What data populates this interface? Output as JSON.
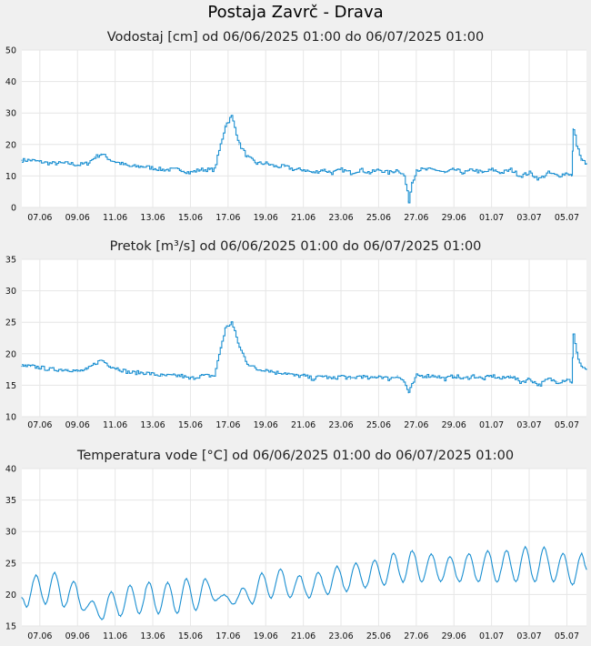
{
  "page": {
    "title": "Postaja Zavrč - Drava"
  },
  "colors": {
    "background": "#f0f0f0",
    "plot_background": "#ffffff",
    "grid": "#e6e6e6",
    "series": "#1a8fd1"
  },
  "chart_data": [
    {
      "type": "line",
      "title": "Vodostaj [cm] od 06/06/2025 01:00 do 06/07/2025 01:00",
      "xlabel": "",
      "ylabel": "",
      "ylim": [
        0,
        50
      ],
      "yticks": [
        0,
        10,
        20,
        30,
        40,
        50
      ],
      "xlim": [
        "06/06/2025 01:00",
        "06/07/2025 01:00"
      ],
      "xticks": [
        "07.06",
        "09.06",
        "11.06",
        "13.06",
        "15.06",
        "17.06",
        "19.06",
        "21.06",
        "23.06",
        "25.06",
        "27.06",
        "29.06",
        "01.07",
        "03.07",
        "05.07"
      ],
      "grid": true,
      "series": [
        {
          "x": [
            "06/06 01:00",
            "06/06 12:00",
            "07/06 00:00",
            "07/06 12:00",
            "08/06 00:00",
            "08/06 12:00",
            "09/06 00:00",
            "09/06 12:00",
            "09/06 22:00",
            "10/06 06:00",
            "10/06 18:00",
            "11/06 06:00",
            "11/06 18:00",
            "12/06 12:00",
            "13/06 12:00",
            "14/06 12:00",
            "14/06 22:00",
            "15/06 12:00",
            "16/06 00:00",
            "16/06 06:00",
            "16/06 14:00",
            "16/06 20:00",
            "17/06 04:00",
            "17/06 14:00",
            "18/06 00:00",
            "18/06 12:00",
            "19/06 00:00",
            "19/06 12:00",
            "20/06 00:00",
            "20/06 12:00",
            "21/06 00:00",
            "21/06 12:00",
            "22/06 00:00",
            "22/06 12:00",
            "23/06 00:00",
            "23/06 12:00",
            "24/06 00:00",
            "24/06 12:00",
            "25/06 00:00",
            "25/06 12:00",
            "26/06 00:00",
            "26/06 08:00",
            "26/06 14:00",
            "26/06 18:00",
            "27/06 00:00",
            "27/06 12:00",
            "28/06 00:00",
            "28/06 12:00",
            "29/06 00:00",
            "29/06 12:00",
            "30/06 00:00",
            "30/06 12:00",
            "01/07 00:00",
            "01/07 12:00",
            "02/07 00:00",
            "02/07 12:00",
            "03/07 00:00",
            "03/07 12:00",
            "04/07 00:00",
            "04/07 12:00",
            "05/07 00:00",
            "05/07 06:00",
            "05/07 08:00",
            "05/07 12:00",
            "05/07 18:00",
            "06/07 01:00"
          ],
          "values": [
            15,
            15,
            14.5,
            14,
            14,
            14,
            13.5,
            14,
            16,
            17,
            15,
            14,
            13,
            13,
            12,
            12,
            11,
            12,
            12,
            12,
            20,
            26,
            29,
            20,
            16,
            14,
            14,
            13,
            13,
            12,
            12,
            11,
            12,
            11,
            12,
            11,
            12,
            11,
            12,
            11,
            12,
            10,
            2,
            8,
            12,
            12,
            12,
            11,
            12,
            11,
            12,
            11,
            12,
            11,
            12,
            10,
            11,
            9,
            11,
            10,
            11,
            10,
            25,
            20,
            15,
            14
          ]
        }
      ]
    },
    {
      "type": "line",
      "title": "Pretok [m³/s] od 06/06/2025 01:00 do 06/07/2025 01:00",
      "xlabel": "",
      "ylabel": "",
      "ylim": [
        10,
        35
      ],
      "yticks": [
        10,
        15,
        20,
        25,
        30,
        35
      ],
      "xlim": [
        "06/06/2025 01:00",
        "06/07/2025 01:00"
      ],
      "xticks": [
        "07.06",
        "09.06",
        "11.06",
        "13.06",
        "15.06",
        "17.06",
        "19.06",
        "21.06",
        "23.06",
        "25.06",
        "27.06",
        "29.06",
        "01.07",
        "03.07",
        "05.07"
      ],
      "grid": true,
      "series": [
        {
          "x": [
            "06/06 01:00",
            "06/06 12:00",
            "07/06 00:00",
            "07/06 12:00",
            "08/06 00:00",
            "08/06 12:00",
            "09/06 00:00",
            "09/06 12:00",
            "09/06 22:00",
            "10/06 06:00",
            "10/06 18:00",
            "11/06 06:00",
            "11/06 18:00",
            "12/06 12:00",
            "13/06 12:00",
            "14/06 12:00",
            "14/06 22:00",
            "15/06 12:00",
            "16/06 00:00",
            "16/06 06:00",
            "16/06 14:00",
            "16/06 20:00",
            "17/06 04:00",
            "17/06 14:00",
            "18/06 00:00",
            "18/06 12:00",
            "19/06 00:00",
            "19/06 12:00",
            "20/06 00:00",
            "20/06 12:00",
            "21/06 00:00",
            "21/06 12:00",
            "22/06 00:00",
            "22/06 12:00",
            "23/06 00:00",
            "23/06 12:00",
            "24/06 00:00",
            "24/06 12:00",
            "25/06 00:00",
            "25/06 12:00",
            "26/06 00:00",
            "26/06 08:00",
            "26/06 14:00",
            "26/06 18:00",
            "27/06 00:00",
            "27/06 12:00",
            "28/06 00:00",
            "28/06 12:00",
            "29/06 00:00",
            "29/06 12:00",
            "30/06 00:00",
            "30/06 12:00",
            "01/07 00:00",
            "01/07 12:00",
            "02/07 00:00",
            "02/07 12:00",
            "03/07 00:00",
            "03/07 12:00",
            "04/07 00:00",
            "04/07 12:00",
            "05/07 00:00",
            "05/07 06:00",
            "05/07 08:00",
            "05/07 12:00",
            "05/07 18:00",
            "06/07 01:00"
          ],
          "values": [
            18,
            18,
            17.8,
            17.5,
            17.5,
            17.5,
            17.2,
            17.5,
            18.5,
            19,
            18,
            17.5,
            17,
            17,
            16.5,
            16.5,
            16,
            16.5,
            16.5,
            16.5,
            21,
            24,
            25,
            21,
            18.5,
            17.5,
            17.5,
            17,
            17,
            16.5,
            16.5,
            16,
            16.5,
            16,
            16.5,
            16,
            16.5,
            16,
            16.5,
            16,
            16.5,
            15.5,
            13.8,
            15,
            16.5,
            16.5,
            16.5,
            16,
            16.5,
            16,
            16.5,
            16,
            16.5,
            16,
            16.5,
            15.5,
            16,
            15,
            16,
            15.5,
            16,
            15.5,
            23,
            20,
            18,
            17.5
          ]
        }
      ]
    },
    {
      "type": "line",
      "title": "Temperatura vode [°C] od 06/06/2025 01:00 do 06/07/2025 01:00",
      "xlabel": "",
      "ylabel": "",
      "ylim": [
        15,
        40
      ],
      "yticks": [
        15,
        20,
        25,
        30,
        35,
        40
      ],
      "xlim": [
        "06/06/2025 01:00",
        "06/07/2025 01:00"
      ],
      "xticks": [
        "07.06",
        "09.06",
        "11.06",
        "13.06",
        "15.06",
        "17.06",
        "19.06",
        "21.06",
        "23.06",
        "25.06",
        "27.06",
        "29.06",
        "01.07",
        "03.07",
        "05.07"
      ],
      "grid": true,
      "series": [
        {
          "x": [
            "06/06 01:00",
            "06/06 07:00",
            "06/06 19:00",
            "07/06 07:00",
            "07/06 19:00",
            "08/06 07:00",
            "08/06 19:00",
            "09/06 07:00",
            "09/06 19:00",
            "10/06 07:00",
            "10/06 19:00",
            "11/06 07:00",
            "11/06 19:00",
            "12/06 07:00",
            "12/06 19:00",
            "13/06 07:00",
            "13/06 19:00",
            "14/06 07:00",
            "14/06 19:00",
            "15/06 07:00",
            "15/06 19:00",
            "16/06 07:00",
            "16/06 19:00",
            "17/06 07:00",
            "17/06 19:00",
            "18/06 07:00",
            "18/06 19:00",
            "19/06 07:00",
            "19/06 19:00",
            "20/06 07:00",
            "20/06 19:00",
            "21/06 07:00",
            "21/06 19:00",
            "22/06 07:00",
            "22/06 19:00",
            "23/06 07:00",
            "23/06 19:00",
            "24/06 07:00",
            "24/06 19:00",
            "25/06 07:00",
            "25/06 19:00",
            "26/06 07:00",
            "26/06 19:00",
            "27/06 07:00",
            "27/06 19:00",
            "28/06 07:00",
            "28/06 19:00",
            "29/06 07:00",
            "29/06 19:00",
            "30/06 07:00",
            "30/06 19:00",
            "01/07 07:00",
            "01/07 19:00",
            "02/07 07:00",
            "02/07 19:00",
            "03/07 07:00",
            "03/07 19:00",
            "04/07 07:00",
            "04/07 19:00",
            "05/07 07:00",
            "05/07 19:00",
            "06/07 01:00"
          ],
          "values": [
            19.5,
            18,
            23,
            18.5,
            23.5,
            18,
            22,
            17.5,
            19,
            16,
            20.5,
            16.5,
            21.5,
            17,
            22,
            17,
            22,
            17,
            22.5,
            17.5,
            22.5,
            19,
            20,
            18.5,
            21,
            18.5,
            23.5,
            19.5,
            24,
            19.5,
            23,
            19.5,
            23.5,
            20,
            24.5,
            20.5,
            25,
            21,
            25.5,
            21.5,
            26.5,
            22,
            27,
            22,
            26.5,
            22,
            26,
            22,
            26.5,
            22,
            27,
            22,
            27,
            22,
            27.5,
            22,
            27.5,
            22,
            26.5,
            21.5,
            26.5,
            24
          ]
        }
      ]
    }
  ]
}
